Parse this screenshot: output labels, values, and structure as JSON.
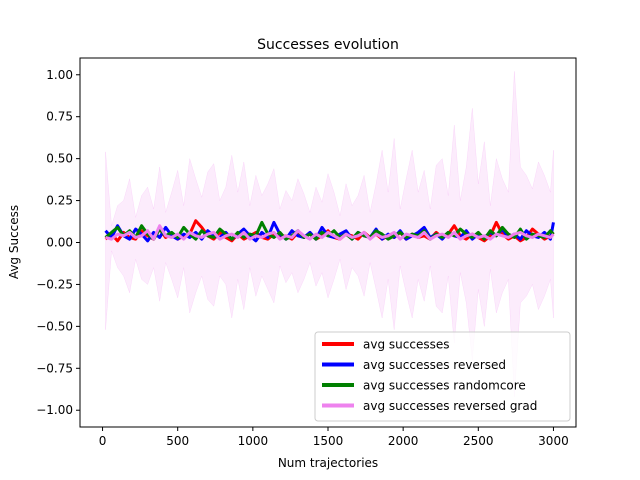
{
  "chart_data": {
    "type": "line",
    "title": "Successes evolution",
    "xlabel": "Num trajectories",
    "ylabel": "Avg Success",
    "xlim": [
      -150,
      3150
    ],
    "ylim": [
      -1.1,
      1.1
    ],
    "xticks": [
      0,
      500,
      1000,
      1500,
      2000,
      2500,
      3000
    ],
    "yticks": [
      -1.0,
      -0.75,
      -0.5,
      -0.25,
      0.0,
      0.25,
      0.5,
      0.75,
      1.0
    ],
    "xtick_labels": [
      "0",
      "500",
      "1000",
      "1500",
      "2000",
      "2500",
      "3000"
    ],
    "ytick_labels": [
      "−1.00",
      "−0.75",
      "−0.50",
      "−0.25",
      "0.00",
      "0.25",
      "0.50",
      "0.75",
      "1.00"
    ],
    "grid": false,
    "legend_position": "lower-right",
    "x": [
      20,
      60,
      100,
      140,
      180,
      220,
      260,
      300,
      340,
      380,
      420,
      460,
      500,
      540,
      580,
      620,
      660,
      700,
      740,
      780,
      820,
      860,
      900,
      940,
      980,
      1020,
      1060,
      1100,
      1140,
      1180,
      1220,
      1260,
      1300,
      1340,
      1380,
      1420,
      1460,
      1500,
      1540,
      1580,
      1620,
      1660,
      1700,
      1740,
      1780,
      1820,
      1860,
      1900,
      1940,
      1980,
      2020,
      2060,
      2100,
      2140,
      2180,
      2220,
      2260,
      2300,
      2340,
      2380,
      2420,
      2460,
      2500,
      2540,
      2580,
      2620,
      2660,
      2700,
      2740,
      2780,
      2820,
      2860,
      2900,
      2940,
      2980,
      3000
    ],
    "series": [
      {
        "name": "avg successes",
        "color": "#ff0000",
        "linewidth": 3,
        "values": [
          0.02,
          0.05,
          0.01,
          0.06,
          0.03,
          0.02,
          0.07,
          0.04,
          0.02,
          0.08,
          0.03,
          0.05,
          0.02,
          0.04,
          0.05,
          0.13,
          0.09,
          0.04,
          0.02,
          0.06,
          0.03,
          0.01,
          0.05,
          0.02,
          0.04,
          0.06,
          0.03,
          0.02,
          0.05,
          0.03,
          0.04,
          0.02,
          0.06,
          0.03,
          0.05,
          0.02,
          0.04,
          0.07,
          0.03,
          0.02,
          0.05,
          0.04,
          0.02,
          0.06,
          0.03,
          0.05,
          0.02,
          0.04,
          0.03,
          0.06,
          0.02,
          0.05,
          0.03,
          0.04,
          0.02,
          0.06,
          0.03,
          0.05,
          0.1,
          0.04,
          0.02,
          0.05,
          0.03,
          0.01,
          0.04,
          0.12,
          0.05,
          0.02,
          0.04,
          0.01,
          0.03,
          0.08,
          0.05,
          0.02,
          0.04,
          0.06
        ]
      },
      {
        "name": "avg successes reversed",
        "color": "#0000ff",
        "linewidth": 3,
        "values": [
          0.07,
          0.03,
          0.1,
          0.04,
          0.02,
          0.08,
          0.05,
          0.01,
          0.06,
          0.03,
          0.09,
          0.04,
          0.02,
          0.05,
          0.03,
          0.06,
          0.02,
          0.07,
          0.04,
          0.03,
          0.06,
          0.02,
          0.05,
          0.08,
          0.04,
          0.01,
          0.06,
          0.03,
          0.12,
          0.05,
          0.02,
          0.07,
          0.04,
          0.03,
          0.06,
          0.02,
          0.09,
          0.04,
          0.03,
          0.05,
          0.07,
          0.02,
          0.06,
          0.04,
          0.03,
          0.08,
          0.02,
          0.05,
          0.03,
          0.07,
          0.02,
          0.04,
          0.06,
          0.09,
          0.03,
          0.05,
          0.02,
          0.06,
          0.04,
          0.03,
          0.07,
          0.02,
          0.05,
          0.03,
          0.06,
          0.04,
          0.08,
          0.03,
          0.05,
          0.02,
          0.07,
          0.04,
          0.03,
          0.06,
          0.02,
          0.12
        ]
      },
      {
        "name": "avg successes randomcore",
        "color": "#008000",
        "linewidth": 3,
        "values": [
          0.03,
          0.06,
          0.09,
          0.04,
          0.07,
          0.03,
          0.1,
          0.05,
          0.02,
          0.08,
          0.04,
          0.06,
          0.03,
          0.09,
          0.05,
          0.02,
          0.07,
          0.04,
          0.03,
          0.08,
          0.05,
          0.02,
          0.06,
          0.03,
          0.05,
          0.04,
          0.12,
          0.05,
          0.03,
          0.06,
          0.02,
          0.04,
          0.07,
          0.03,
          0.05,
          0.02,
          0.06,
          0.04,
          0.07,
          0.03,
          0.05,
          0.02,
          0.06,
          0.04,
          0.03,
          0.07,
          0.05,
          0.02,
          0.04,
          0.06,
          0.03,
          0.05,
          0.04,
          0.07,
          0.02,
          0.05,
          0.03,
          0.06,
          0.04,
          0.08,
          0.05,
          0.03,
          0.06,
          0.02,
          0.07,
          0.04,
          0.09,
          0.05,
          0.03,
          0.08,
          0.02,
          0.05,
          0.04,
          0.03,
          0.07,
          0.05
        ]
      },
      {
        "name": "avg successes reversed grad",
        "color": "#ee82ee",
        "linewidth": 3,
        "values": [
          0.03,
          0.02,
          0.05,
          0.04,
          0.06,
          0.03,
          0.04,
          0.07,
          0.02,
          0.1,
          0.04,
          0.03,
          0.05,
          0.02,
          0.06,
          0.04,
          0.03,
          0.05,
          0.06,
          0.02,
          0.04,
          0.05,
          0.03,
          0.06,
          0.02,
          0.04,
          0.03,
          0.05,
          0.06,
          0.02,
          0.04,
          0.03,
          0.07,
          0.04,
          0.02,
          0.05,
          0.03,
          0.06,
          0.04,
          0.02,
          0.05,
          0.03,
          0.04,
          0.06,
          0.02,
          0.05,
          0.03,
          0.04,
          0.06,
          0.02,
          0.05,
          0.04,
          0.03,
          0.06,
          0.02,
          0.04,
          0.05,
          0.03,
          0.06,
          0.02,
          0.04,
          0.05,
          0.03,
          0.04,
          0.02,
          0.05,
          0.04,
          0.03,
          0.05,
          0.06,
          0.04,
          0.03,
          0.05,
          0.04,
          0.03,
          0.05
        ],
        "band_color": "#ee82ee",
        "band_upper": [
          0.54,
          0.1,
          0.22,
          0.25,
          0.38,
          0.15,
          0.28,
          0.33,
          0.2,
          0.45,
          0.18,
          0.3,
          0.43,
          0.22,
          0.5,
          0.38,
          0.27,
          0.42,
          0.47,
          0.25,
          0.33,
          0.52,
          0.3,
          0.48,
          0.22,
          0.4,
          0.28,
          0.35,
          0.44,
          0.2,
          0.31,
          0.25,
          0.38,
          0.29,
          0.18,
          0.33,
          0.24,
          0.41,
          0.3,
          0.16,
          0.35,
          0.22,
          0.28,
          0.4,
          0.18,
          0.35,
          0.55,
          0.3,
          0.62,
          0.2,
          0.38,
          0.55,
          0.3,
          0.43,
          0.2,
          0.46,
          0.5,
          0.28,
          0.7,
          0.25,
          0.45,
          0.8,
          0.35,
          0.6,
          0.22,
          0.5,
          0.38,
          0.3,
          1.02,
          0.45,
          0.4,
          0.32,
          0.48,
          0.4,
          0.3,
          0.55
        ],
        "band_lower": [
          -0.52,
          -0.05,
          -0.15,
          -0.2,
          -0.3,
          -0.1,
          -0.22,
          -0.25,
          -0.15,
          -0.35,
          -0.12,
          -0.22,
          -0.33,
          -0.15,
          -0.42,
          -0.3,
          -0.2,
          -0.34,
          -0.38,
          -0.2,
          -0.25,
          -0.45,
          -0.22,
          -0.4,
          -0.15,
          -0.32,
          -0.2,
          -0.28,
          -0.36,
          -0.14,
          -0.24,
          -0.18,
          -0.3,
          -0.22,
          -0.12,
          -0.26,
          -0.18,
          -0.33,
          -0.22,
          -0.1,
          -0.28,
          -0.15,
          -0.2,
          -0.32,
          -0.12,
          -0.28,
          -0.45,
          -0.22,
          -0.52,
          -0.14,
          -0.3,
          -0.45,
          -0.22,
          -0.35,
          -0.14,
          -0.38,
          -0.42,
          -0.2,
          -0.6,
          -0.18,
          -0.36,
          -0.7,
          -0.28,
          -0.5,
          -0.16,
          -0.42,
          -0.3,
          -0.22,
          -0.92,
          -0.36,
          -0.32,
          -0.25,
          -0.4,
          -0.32,
          -0.22,
          -0.45
        ]
      }
    ]
  }
}
